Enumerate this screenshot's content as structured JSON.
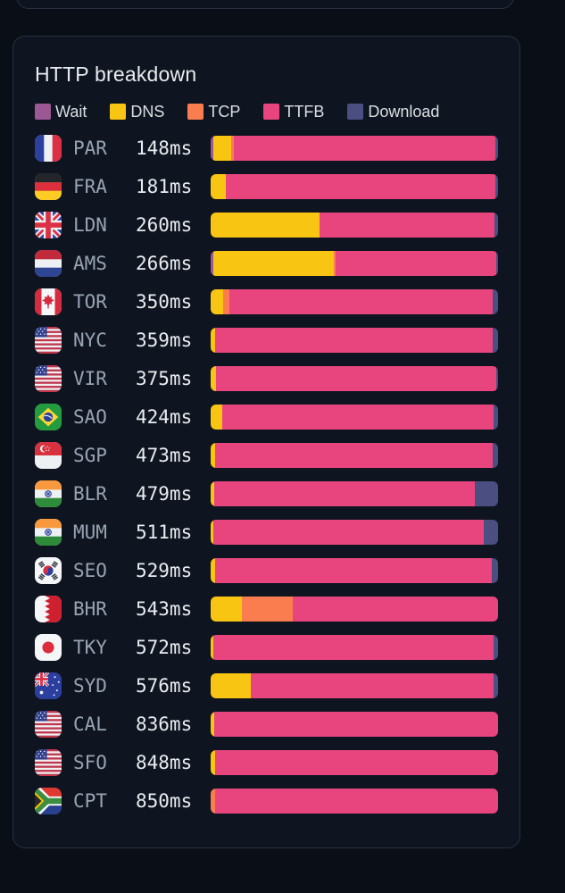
{
  "card": {
    "title": "HTTP breakdown"
  },
  "chart_data": {
    "type": "bar",
    "variant": "stacked-horizontal-normalized",
    "title": "HTTP breakdown",
    "unit": "ms",
    "legend_position": "top",
    "legend": [
      {
        "key": "wait",
        "label": "Wait",
        "color": "#9c5795"
      },
      {
        "key": "dns",
        "label": "DNS",
        "color": "#f9c513"
      },
      {
        "key": "tcp",
        "label": "TCP",
        "color": "#f97d4e"
      },
      {
        "key": "ttfb",
        "label": "TTFB",
        "color": "#e8457e"
      },
      {
        "key": "download",
        "label": "Download",
        "color": "#4a4e80"
      }
    ],
    "rows": [
      {
        "code": "PAR",
        "flag": "fr",
        "flag_name": "france-flag",
        "total_ms": 148,
        "time_label": "148ms",
        "segments_pct": {
          "wait": 0.9,
          "dns": 6.2,
          "tcp": 0.9,
          "ttfb": 91.0,
          "download": 1.0
        }
      },
      {
        "code": "FRA",
        "flag": "de",
        "flag_name": "germany-flag",
        "total_ms": 181,
        "time_label": "181ms",
        "segments_pct": {
          "wait": 0,
          "dns": 5.2,
          "tcp": 0,
          "ttfb": 93.8,
          "download": 1.0
        }
      },
      {
        "code": "LDN",
        "flag": "gb",
        "flag_name": "uk-flag",
        "total_ms": 260,
        "time_label": "260ms",
        "segments_pct": {
          "wait": 0,
          "dns": 38.0,
          "tcp": 0,
          "ttfb": 60.8,
          "download": 1.2
        }
      },
      {
        "code": "AMS",
        "flag": "nl",
        "flag_name": "netherlands-flag",
        "total_ms": 266,
        "time_label": "266ms",
        "segments_pct": {
          "wait": 0.8,
          "dns": 42.0,
          "tcp": 0.8,
          "ttfb": 55.9,
          "download": 0.5
        }
      },
      {
        "code": "TOR",
        "flag": "ca",
        "flag_name": "canada-flag",
        "total_ms": 350,
        "time_label": "350ms",
        "segments_pct": {
          "wait": 0,
          "dns": 4.3,
          "tcp": 2.2,
          "ttfb": 91.7,
          "download": 1.8
        }
      },
      {
        "code": "NYC",
        "flag": "us",
        "flag_name": "usa-flag",
        "total_ms": 359,
        "time_label": "359ms",
        "segments_pct": {
          "wait": 0,
          "dns": 1.6,
          "tcp": 0,
          "ttfb": 96.6,
          "download": 1.8
        }
      },
      {
        "code": "VIR",
        "flag": "us",
        "flag_name": "usa-flag",
        "total_ms": 375,
        "time_label": "375ms",
        "segments_pct": {
          "wait": 0,
          "dns": 2.0,
          "tcp": 0,
          "ttfb": 97.3,
          "download": 0.7
        }
      },
      {
        "code": "SAO",
        "flag": "br",
        "flag_name": "brazil-flag",
        "total_ms": 424,
        "time_label": "424ms",
        "segments_pct": {
          "wait": 0,
          "dns": 4.0,
          "tcp": 0,
          "ttfb": 94.5,
          "download": 1.5
        }
      },
      {
        "code": "SGP",
        "flag": "sg",
        "flag_name": "singapore-flag",
        "total_ms": 473,
        "time_label": "473ms",
        "segments_pct": {
          "wait": 0,
          "dns": 1.6,
          "tcp": 0,
          "ttfb": 96.4,
          "download": 2.0
        }
      },
      {
        "code": "BLR",
        "flag": "in",
        "flag_name": "india-flag",
        "total_ms": 479,
        "time_label": "479ms",
        "segments_pct": {
          "wait": 0,
          "dns": 1.2,
          "tcp": 0,
          "ttfb": 90.8,
          "download": 8.0
        }
      },
      {
        "code": "MUM",
        "flag": "in",
        "flag_name": "india-flag",
        "total_ms": 511,
        "time_label": "511ms",
        "segments_pct": {
          "wait": 0,
          "dns": 1.0,
          "tcp": 0,
          "ttfb": 94.0,
          "download": 5.0
        }
      },
      {
        "code": "SEO",
        "flag": "kr",
        "flag_name": "south-korea-flag",
        "total_ms": 529,
        "time_label": "529ms",
        "segments_pct": {
          "wait": 0,
          "dns": 1.6,
          "tcp": 0,
          "ttfb": 96.2,
          "download": 2.2
        }
      },
      {
        "code": "BHR",
        "flag": "bh",
        "flag_name": "bahrain-flag",
        "total_ms": 543,
        "time_label": "543ms",
        "segments_pct": {
          "wait": 0,
          "dns": 11.0,
          "tcp": 17.5,
          "ttfb": 71.5,
          "download": 0
        }
      },
      {
        "code": "TKY",
        "flag": "jp",
        "flag_name": "japan-flag",
        "total_ms": 572,
        "time_label": "572ms",
        "segments_pct": {
          "wait": 0,
          "dns": 1.0,
          "tcp": 0,
          "ttfb": 97.5,
          "download": 1.5
        }
      },
      {
        "code": "SYD",
        "flag": "au",
        "flag_name": "australia-flag",
        "total_ms": 576,
        "time_label": "576ms",
        "segments_pct": {
          "wait": 0,
          "dns": 14.0,
          "tcp": 0,
          "ttfb": 84.3,
          "download": 1.7
        }
      },
      {
        "code": "CAL",
        "flag": "us",
        "flag_name": "usa-flag",
        "total_ms": 836,
        "time_label": "836ms",
        "segments_pct": {
          "wait": 0,
          "dns": 1.2,
          "tcp": 0,
          "ttfb": 98.8,
          "download": 0
        }
      },
      {
        "code": "SFO",
        "flag": "us",
        "flag_name": "usa-flag",
        "total_ms": 848,
        "time_label": "848ms",
        "segments_pct": {
          "wait": 0,
          "dns": 1.4,
          "tcp": 0,
          "ttfb": 98.6,
          "download": 0
        }
      },
      {
        "code": "CPT",
        "flag": "za",
        "flag_name": "south-africa-flag",
        "total_ms": 850,
        "time_label": "850ms",
        "segments_pct": {
          "wait": 0,
          "dns": 0,
          "tcp": 1.4,
          "ttfb": 98.6,
          "download": 0
        }
      }
    ]
  }
}
